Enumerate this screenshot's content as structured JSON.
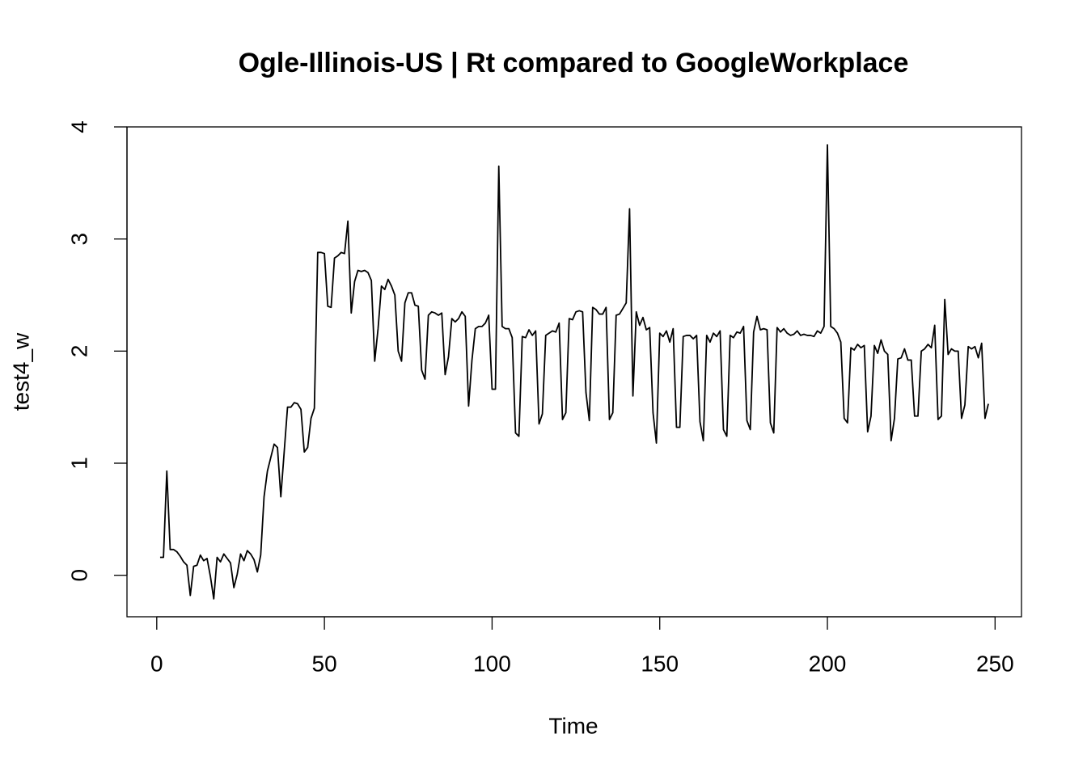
{
  "chart_data": {
    "type": "line",
    "title": "Ogle-Illinois-US | Rt compared to GoogleWorkplace",
    "x_label": "Time",
    "y_label": "test4_w",
    "color": "#000000",
    "xlim": [
      -8.88,
      257.88
    ],
    "ylim": [
      -0.37,
      4.0
    ],
    "xticks": [
      0,
      50,
      100,
      150,
      200,
      250
    ],
    "yticks": [
      0,
      1,
      2,
      3,
      4
    ],
    "x": [
      1,
      2,
      3,
      4,
      5,
      6,
      7,
      8,
      9,
      10,
      11,
      12,
      13,
      14,
      15,
      16,
      17,
      18,
      19,
      20,
      21,
      22,
      23,
      24,
      25,
      26,
      27,
      28,
      29,
      30,
      31,
      32,
      33,
      34,
      35,
      36,
      37,
      38,
      39,
      40,
      41,
      42,
      43,
      44,
      45,
      46,
      47,
      48,
      49,
      50,
      51,
      52,
      53,
      54,
      55,
      56,
      57,
      58,
      59,
      60,
      61,
      62,
      63,
      64,
      65,
      66,
      67,
      68,
      69,
      70,
      71,
      72,
      73,
      74,
      75,
      76,
      77,
      78,
      79,
      80,
      81,
      82,
      83,
      84,
      85,
      86,
      87,
      88,
      89,
      90,
      91,
      92,
      93,
      94,
      95,
      96,
      97,
      98,
      99,
      100,
      101,
      102,
      103,
      104,
      105,
      106,
      107,
      108,
      109,
      110,
      111,
      112,
      113,
      114,
      115,
      116,
      117,
      118,
      119,
      120,
      121,
      122,
      123,
      124,
      125,
      126,
      127,
      128,
      129,
      130,
      131,
      132,
      133,
      134,
      135,
      136,
      137,
      138,
      139,
      140,
      141,
      142,
      143,
      144,
      145,
      146,
      147,
      148,
      149,
      150,
      151,
      152,
      153,
      154,
      155,
      156,
      157,
      158,
      159,
      160,
      161,
      162,
      163,
      164,
      165,
      166,
      167,
      168,
      169,
      170,
      171,
      172,
      173,
      174,
      175,
      176,
      177,
      178,
      179,
      180,
      181,
      182,
      183,
      184,
      185,
      186,
      187,
      188,
      189,
      190,
      191,
      192,
      193,
      194,
      195,
      196,
      197,
      198,
      199,
      200,
      201,
      202,
      203,
      204,
      205,
      206,
      207,
      208,
      209,
      210,
      211,
      212,
      213,
      214,
      215,
      216,
      217,
      218,
      219,
      220,
      221,
      222,
      223,
      224,
      225,
      226,
      227,
      228,
      229,
      230,
      231,
      232,
      233,
      234,
      235,
      236,
      237,
      238,
      239,
      240,
      241,
      242,
      243,
      244,
      245,
      246,
      247,
      248
    ],
    "values": [
      0.16,
      0.16,
      0.93,
      0.23,
      0.23,
      0.21,
      0.17,
      0.12,
      0.09,
      -0.18,
      0.08,
      0.09,
      0.18,
      0.13,
      0.15,
      -0.01,
      -0.21,
      0.16,
      0.12,
      0.19,
      0.15,
      0.11,
      -0.11,
      0.01,
      0.19,
      0.13,
      0.22,
      0.19,
      0.14,
      0.03,
      0.18,
      0.7,
      0.93,
      1.05,
      1.17,
      1.14,
      0.7,
      1.1,
      1.5,
      1.5,
      1.54,
      1.53,
      1.48,
      1.1,
      1.14,
      1.4,
      1.49,
      2.88,
      2.88,
      2.87,
      2.4,
      2.39,
      2.83,
      2.85,
      2.88,
      2.87,
      3.16,
      2.34,
      2.62,
      2.72,
      2.71,
      2.72,
      2.7,
      2.63,
      1.91,
      2.2,
      2.58,
      2.55,
      2.64,
      2.58,
      2.5,
      2.0,
      1.91,
      2.43,
      2.52,
      2.52,
      2.41,
      2.4,
      1.83,
      1.75,
      2.32,
      2.35,
      2.34,
      2.32,
      2.34,
      1.79,
      1.95,
      2.29,
      2.26,
      2.29,
      2.35,
      2.31,
      1.51,
      1.92,
      2.2,
      2.22,
      2.22,
      2.25,
      2.32,
      1.66,
      1.66,
      3.65,
      2.22,
      2.2,
      2.2,
      2.12,
      1.27,
      1.24,
      2.13,
      2.12,
      2.19,
      2.14,
      2.18,
      1.35,
      1.44,
      2.14,
      2.16,
      2.18,
      2.17,
      2.25,
      1.39,
      1.45,
      2.29,
      2.28,
      2.35,
      2.36,
      2.35,
      1.63,
      1.38,
      2.39,
      2.37,
      2.33,
      2.33,
      2.39,
      1.39,
      1.45,
      2.32,
      2.33,
      2.38,
      2.43,
      3.27,
      1.6,
      2.35,
      2.23,
      2.3,
      2.19,
      2.21,
      1.45,
      1.18,
      2.16,
      2.13,
      2.18,
      2.08,
      2.2,
      1.32,
      1.32,
      2.13,
      2.14,
      2.14,
      2.11,
      2.14,
      1.37,
      1.2,
      2.14,
      2.08,
      2.16,
      2.13,
      2.18,
      1.3,
      1.24,
      2.14,
      2.12,
      2.17,
      2.16,
      2.22,
      1.38,
      1.3,
      2.17,
      2.31,
      2.19,
      2.2,
      2.19,
      1.36,
      1.27,
      2.21,
      2.17,
      2.2,
      2.16,
      2.14,
      2.15,
      2.18,
      2.14,
      2.15,
      2.14,
      2.14,
      2.13,
      2.18,
      2.16,
      2.22,
      3.84,
      2.22,
      2.2,
      2.16,
      2.08,
      1.4,
      1.36,
      2.03,
      2.01,
      2.06,
      2.03,
      2.05,
      1.28,
      1.42,
      2.05,
      1.98,
      2.1,
      2.0,
      1.97,
      1.2,
      1.4,
      1.93,
      1.94,
      2.02,
      1.92,
      1.92,
      1.42,
      1.42,
      2.0,
      2.02,
      2.06,
      2.03,
      2.23,
      1.39,
      1.42,
      2.46,
      1.97,
      2.02,
      2.0,
      2.0,
      1.4,
      1.52,
      2.04,
      2.02,
      2.04,
      1.94,
      2.07,
      1.4,
      1.53
    ]
  }
}
